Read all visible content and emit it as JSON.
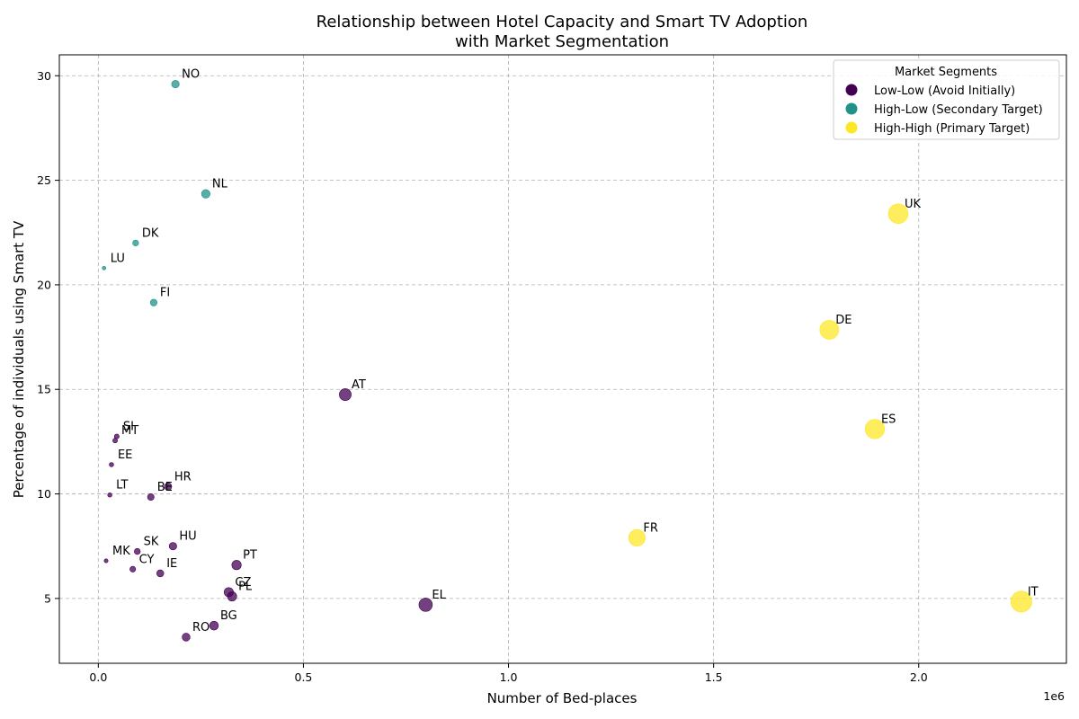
{
  "chart_data": {
    "type": "scatter",
    "title": [
      "Relationship between Hotel Capacity and Smart TV Adoption",
      "with Market Segmentation"
    ],
    "xlabel": "Number of Bed-places",
    "ylabel": "Percentage of individuals using Smart TV",
    "x_offset_label": "1e6",
    "xlim": [
      -95000,
      2360000
    ],
    "ylim": [
      1.9,
      31.0
    ],
    "xticks": [
      0.0,
      0.5,
      1.0,
      1.5,
      2.0
    ],
    "xtick_labels": [
      "0.0",
      "0.5",
      "1.0",
      "1.5",
      "2.0"
    ],
    "yticks": [
      5,
      10,
      15,
      20,
      25,
      30
    ],
    "ytick_labels": [
      "5",
      "10",
      "15",
      "20",
      "25",
      "30"
    ],
    "grid": true,
    "legend": {
      "title": "Market Segments",
      "placement": "top-right",
      "entries": [
        {
          "label": "Low-Low (Avoid Initially)",
          "color": "#440154"
        },
        {
          "label": "High-Low (Secondary Target)",
          "color": "#21918c"
        },
        {
          "label": "High-High (Primary Target)",
          "color": "#fde725"
        }
      ]
    },
    "segment_colors": {
      "low": "#440154",
      "mid": "#21918c",
      "high": "#fde725"
    },
    "points": [
      {
        "label": "NO",
        "x": 188000,
        "y": 29.6,
        "segment": "mid"
      },
      {
        "label": "NL",
        "x": 262000,
        "y": 24.35,
        "segment": "mid"
      },
      {
        "label": "DK",
        "x": 91000,
        "y": 22.0,
        "segment": "mid"
      },
      {
        "label": "LU",
        "x": 14000,
        "y": 20.8,
        "segment": "mid"
      },
      {
        "label": "FI",
        "x": 135000,
        "y": 19.15,
        "segment": "mid"
      },
      {
        "label": "UK",
        "x": 1950000,
        "y": 23.4,
        "segment": "high"
      },
      {
        "label": "DE",
        "x": 1782000,
        "y": 17.85,
        "segment": "high"
      },
      {
        "label": "ES",
        "x": 1893000,
        "y": 13.1,
        "segment": "high"
      },
      {
        "label": "FR",
        "x": 1313000,
        "y": 7.9,
        "segment": "high"
      },
      {
        "label": "IT",
        "x": 2250000,
        "y": 4.85,
        "segment": "high"
      },
      {
        "label": "AT",
        "x": 602000,
        "y": 14.75,
        "segment": "low"
      },
      {
        "label": "SI",
        "x": 45000,
        "y": 12.75,
        "segment": "low"
      },
      {
        "label": "MT",
        "x": 41000,
        "y": 12.55,
        "segment": "low"
      },
      {
        "label": "EE",
        "x": 32000,
        "y": 11.4,
        "segment": "low"
      },
      {
        "label": "LT",
        "x": 28000,
        "y": 9.95,
        "segment": "low"
      },
      {
        "label": "BE",
        "x": 128000,
        "y": 9.85,
        "segment": "low"
      },
      {
        "label": "HR",
        "x": 170000,
        "y": 10.35,
        "segment": "low"
      },
      {
        "label": "HU",
        "x": 182000,
        "y": 7.5,
        "segment": "low"
      },
      {
        "label": "SK",
        "x": 95000,
        "y": 7.25,
        "segment": "low"
      },
      {
        "label": "MK",
        "x": 19000,
        "y": 6.8,
        "segment": "low"
      },
      {
        "label": "CY",
        "x": 84000,
        "y": 6.4,
        "segment": "low"
      },
      {
        "label": "IE",
        "x": 151000,
        "y": 6.2,
        "segment": "low"
      },
      {
        "label": "PT",
        "x": 337000,
        "y": 6.6,
        "segment": "low"
      },
      {
        "label": "CZ",
        "x": 318000,
        "y": 5.3,
        "segment": "low"
      },
      {
        "label": "PL",
        "x": 326000,
        "y": 5.1,
        "segment": "low"
      },
      {
        "label": "EL",
        "x": 798000,
        "y": 4.7,
        "segment": "low"
      },
      {
        "label": "BG",
        "x": 282000,
        "y": 3.7,
        "segment": "low"
      },
      {
        "label": "RO",
        "x": 214000,
        "y": 3.15,
        "segment": "low"
      }
    ]
  }
}
